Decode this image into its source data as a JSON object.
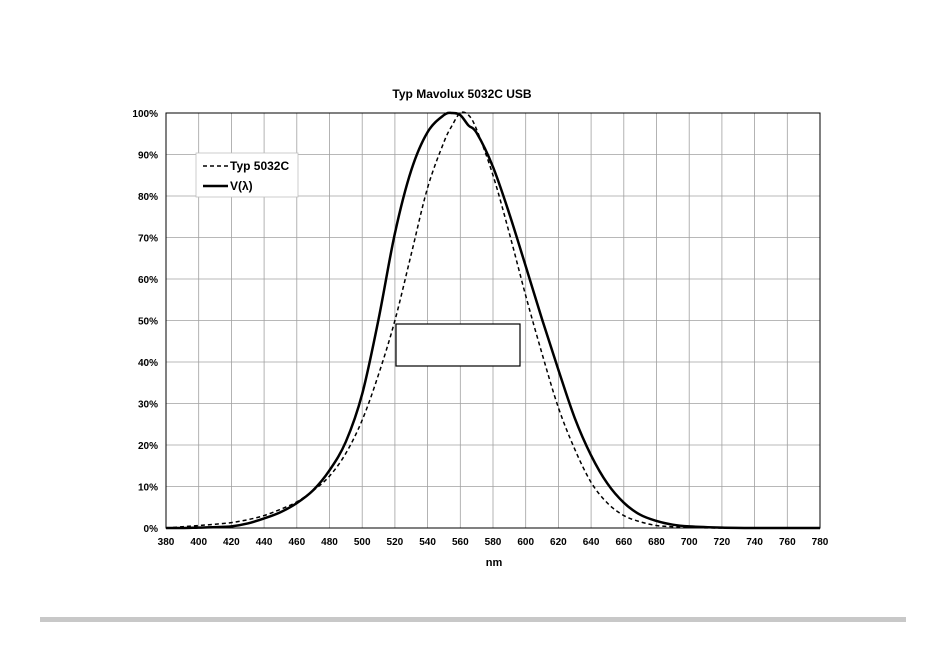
{
  "chart_data": {
    "type": "line",
    "title": "Typ Mavolux 5032C USB",
    "xlabel": "nm",
    "ylabel": "",
    "xlim": [
      380,
      780
    ],
    "ylim": [
      0,
      100
    ],
    "x_ticks": [
      "380",
      "400",
      "420",
      "440",
      "460",
      "480",
      "500",
      "520",
      "540",
      "560",
      "580",
      "600",
      "620",
      "640",
      "660",
      "680",
      "700",
      "720",
      "740",
      "760",
      "780"
    ],
    "y_ticks": [
      "0%",
      "10%",
      "20%",
      "30%",
      "40%",
      "50%",
      "60%",
      "70%",
      "80%",
      "90%",
      "100%"
    ],
    "grid": true,
    "legend_position": "top-left",
    "x": [
      380,
      390,
      400,
      410,
      420,
      430,
      440,
      450,
      460,
      470,
      480,
      490,
      500,
      510,
      520,
      530,
      540,
      550,
      555,
      560,
      565,
      570,
      580,
      590,
      600,
      610,
      620,
      630,
      640,
      650,
      660,
      670,
      680,
      690,
      700,
      720,
      740,
      760,
      780
    ],
    "series": [
      {
        "name": "Typ 5032C",
        "line_style": "dashed",
        "values": [
          0,
          0.3,
          0.6,
          0.9,
          1.3,
          2,
          3,
          4.5,
          6.3,
          9,
          12.5,
          18,
          26,
          37,
          50,
          66,
          82,
          93,
          97,
          100,
          99.5,
          96,
          85,
          71,
          56,
          42,
          29,
          19,
          11,
          6,
          3,
          1.5,
          0.6,
          0.3,
          0.1,
          0,
          0,
          0,
          0
        ]
      },
      {
        "name": "V(λ)",
        "line_style": "solid",
        "values": [
          0,
          0,
          0.1,
          0.2,
          0.4,
          1.1,
          2.3,
          3.8,
          6,
          9.1,
          13.9,
          20.8,
          32.3,
          50.3,
          71,
          86.2,
          95.4,
          99.5,
          100,
          99.5,
          97,
          95.2,
          87,
          75.7,
          63.1,
          50.3,
          38.1,
          26.5,
          17.5,
          10.7,
          6.1,
          3.2,
          1.7,
          0.8,
          0.4,
          0.1,
          0,
          0,
          0
        ]
      }
    ],
    "colors": {
      "series": "#000000",
      "grid": "#a0a0a0",
      "axis": "#000000"
    }
  }
}
